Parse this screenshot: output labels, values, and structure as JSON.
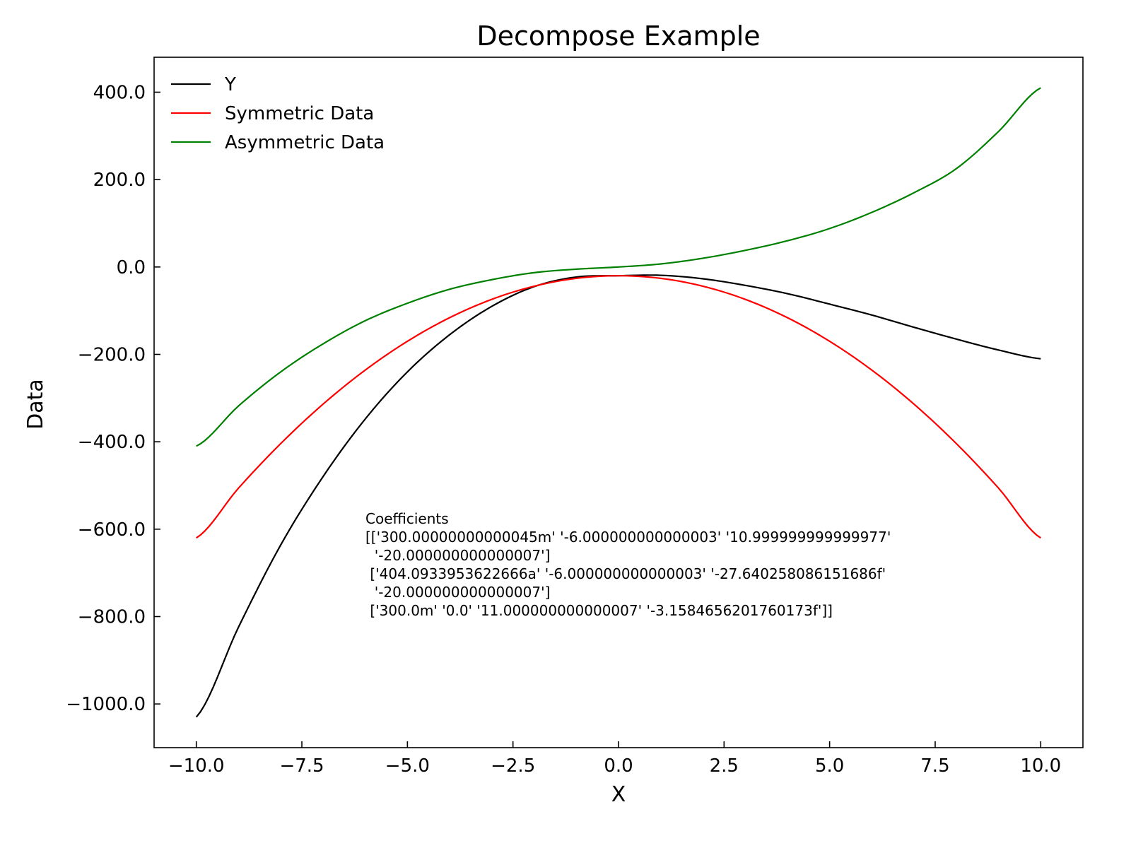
{
  "chart_data": {
    "type": "line",
    "title": "Decompose Example",
    "xlabel": "X",
    "ylabel": "Data",
    "xlim": [
      -11.0,
      11.0
    ],
    "ylim": [
      -1100,
      480
    ],
    "xticks": [
      -10.0,
      -7.5,
      -5.0,
      -2.5,
      0.0,
      2.5,
      5.0,
      7.5,
      10.0
    ],
    "xtick_labels": [
      "−10.0",
      "−7.5",
      "−5.0",
      "−2.5",
      "0.0",
      "2.5",
      "5.0",
      "7.5",
      "10.0"
    ],
    "yticks": [
      400,
      200,
      0,
      -200,
      -400,
      -600,
      -800,
      -1000
    ],
    "ytick_labels": [
      "400.0",
      "200.0",
      "0.0",
      "−200.0",
      "−400.0",
      "−600.0",
      "−800.0",
      "−1000.0"
    ],
    "grid": false,
    "legend_position": "top-left",
    "series": [
      {
        "name": "Y",
        "color": "#000000",
        "x": [
          -10,
          -9,
          -8,
          -7,
          -6,
          -5,
          -4,
          -3,
          -2,
          -1,
          0,
          1,
          2,
          3,
          4,
          5,
          6,
          7,
          8,
          9,
          10
        ],
        "y": [
          -1030,
          -824,
          -636,
          -480,
          -348,
          -240,
          -155,
          -90,
          -45,
          -23,
          -20,
          -19,
          -27,
          -42,
          -61,
          -85,
          -110,
          -138,
          -165,
          -190,
          -210
        ]
      },
      {
        "name": "Symmetric Data",
        "color": "#ff0000",
        "x": [
          -10,
          -9,
          -8,
          -7,
          -6,
          -5,
          -4,
          -3,
          -2,
          -1,
          0,
          1,
          2,
          3,
          4,
          5,
          6,
          7,
          8,
          9,
          10
        ],
        "y": [
          -620,
          -506,
          -404,
          -314,
          -236,
          -170,
          -116,
          -74,
          -44,
          -26,
          -20,
          -26,
          -44,
          -74,
          -116,
          -170,
          -236,
          -314,
          -404,
          -506,
          -620
        ]
      },
      {
        "name": "Asymmetric Data",
        "color": "#008000",
        "x": [
          -10,
          -9,
          -8,
          -7,
          -6,
          -5,
          -4,
          -3,
          -2,
          -1,
          0,
          1,
          2,
          3,
          4,
          5,
          6,
          7,
          8,
          9,
          10
        ],
        "y": [
          -410,
          -318,
          -240,
          -176,
          -123,
          -83,
          -51,
          -29,
          -13,
          -5,
          0,
          7,
          20,
          38,
          60,
          88,
          125,
          170,
          225,
          310,
          410
        ]
      }
    ],
    "annotation": [
      "Coefficients",
      "[['300.00000000000045m' '-6.000000000000003' '10.999999999999977'",
      "  '-20.000000000000007']",
      " ['404.0933953622666a' '-6.000000000000003' '-27.640258086151686f'",
      "  '-20.000000000000007']",
      " ['300.0m' '0.0' '11.000000000000007' '-3.1584656201760173f']]"
    ]
  }
}
